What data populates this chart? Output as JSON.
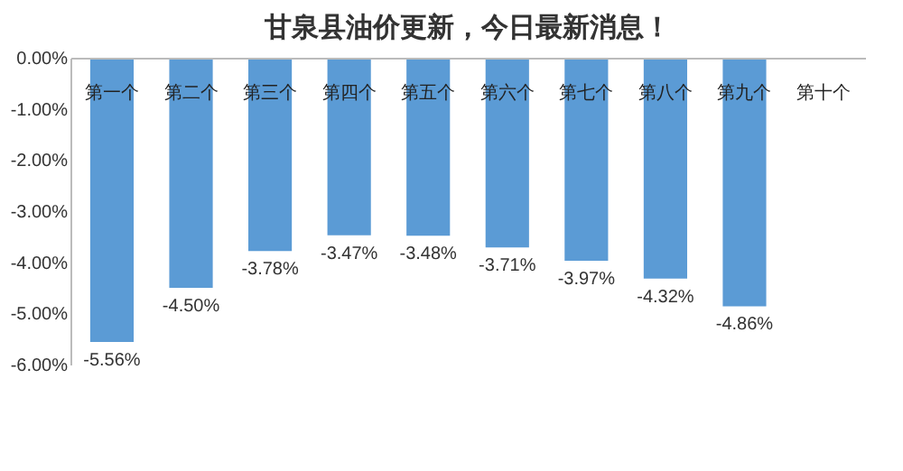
{
  "chart_data": {
    "type": "bar",
    "title": "甘泉县油价更新，今日最新消息！",
    "categories": [
      "第一个",
      "第二个",
      "第三个",
      "第四个",
      "第五个",
      "第六个",
      "第七个",
      "第八个",
      "第九个",
      "第十个"
    ],
    "values": [
      -5.56,
      -4.5,
      -3.78,
      -3.47,
      -3.48,
      -3.71,
      -3.97,
      -4.32,
      -4.86,
      null
    ],
    "value_labels": [
      "-5.56%",
      "-4.50%",
      "-3.78%",
      "-3.47%",
      "-3.48%",
      "-3.71%",
      "-3.97%",
      "-4.32%",
      "-4.86%",
      null
    ],
    "color": "#5b9bd5",
    "ylim": [
      -6,
      0
    ],
    "yticks": [
      {
        "value": 0,
        "label": "0.00%"
      },
      {
        "value": -1,
        "label": "-1.00%"
      },
      {
        "value": -2,
        "label": "-2.00%"
      },
      {
        "value": -3,
        "label": "-3.00%"
      },
      {
        "value": -4,
        "label": "-4.00%"
      },
      {
        "value": -5,
        "label": "-5.00%"
      },
      {
        "value": -6,
        "label": "-6.00%"
      }
    ]
  }
}
